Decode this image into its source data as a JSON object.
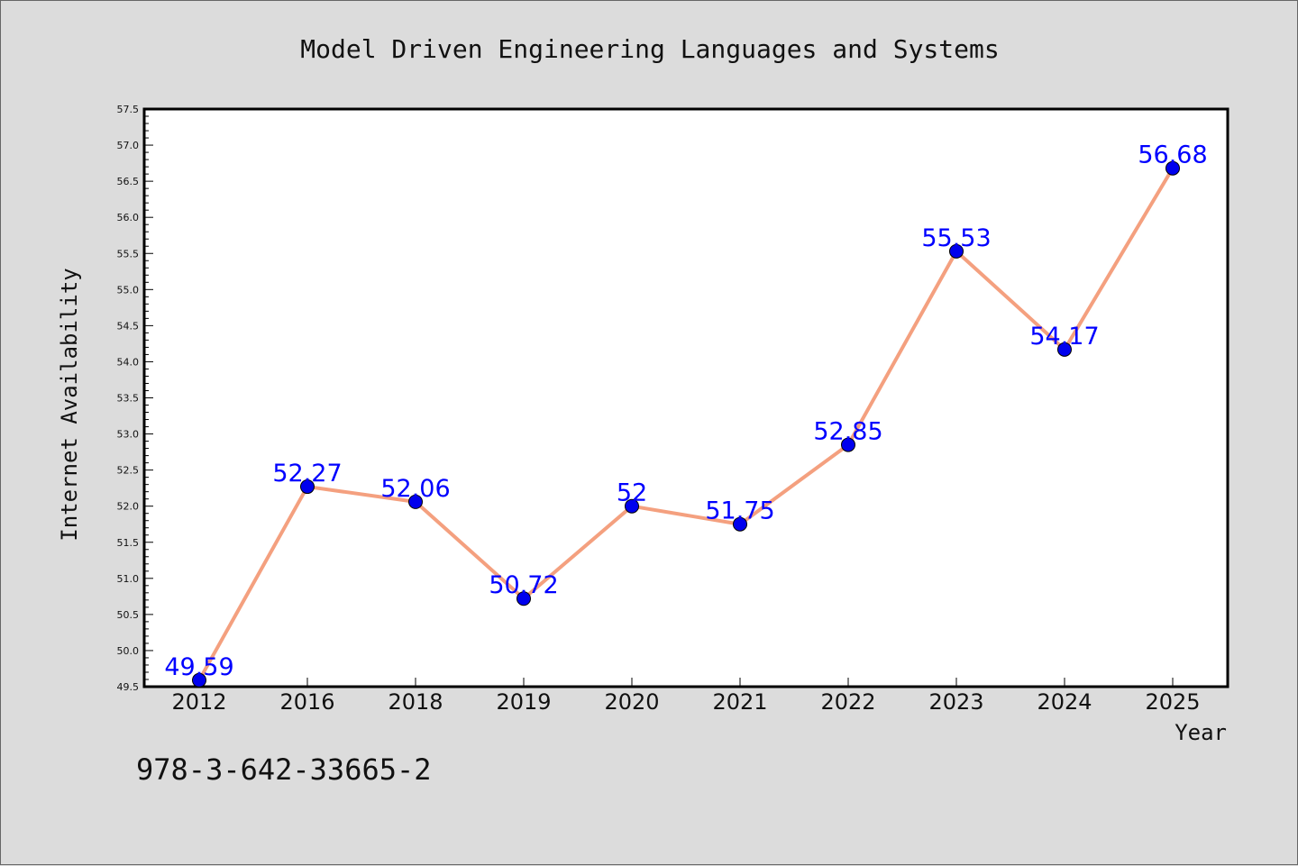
{
  "chart_data": {
    "type": "line",
    "title": "Model Driven Engineering Languages and Systems",
    "xlabel": "Year",
    "ylabel": "Internet Availability",
    "categories": [
      "2012",
      "2016",
      "2018",
      "2019",
      "2020",
      "2021",
      "2022",
      "2023",
      "2024",
      "2025"
    ],
    "series": [
      {
        "values": [
          49.59,
          52.27,
          52.06,
          50.72,
          52,
          51.75,
          52.85,
          55.53,
          54.17,
          56.68
        ]
      }
    ],
    "data_labels": [
      "49.59",
      "52.27",
      "52.06",
      "50.72",
      "52",
      "51.75",
      "52.85",
      "55.53",
      "54.17",
      "56.68"
    ],
    "ylim": [
      49.5,
      57.5
    ],
    "ytick_step": 0.5,
    "ytick_labels": [
      "49.5",
      "50.0",
      "50.5",
      "51.0",
      "51.5",
      "52.0",
      "52.5",
      "53.0",
      "53.5",
      "54.0",
      "54.5",
      "55.0",
      "55.5",
      "56.0",
      "56.5",
      "57.0",
      "57.5"
    ],
    "grid": false,
    "legend": "none",
    "line_color": "#f4a07f",
    "marker_color": "#0000ee",
    "label_color": "#0000ff"
  },
  "footer_text": "978-3-642-33665-2"
}
